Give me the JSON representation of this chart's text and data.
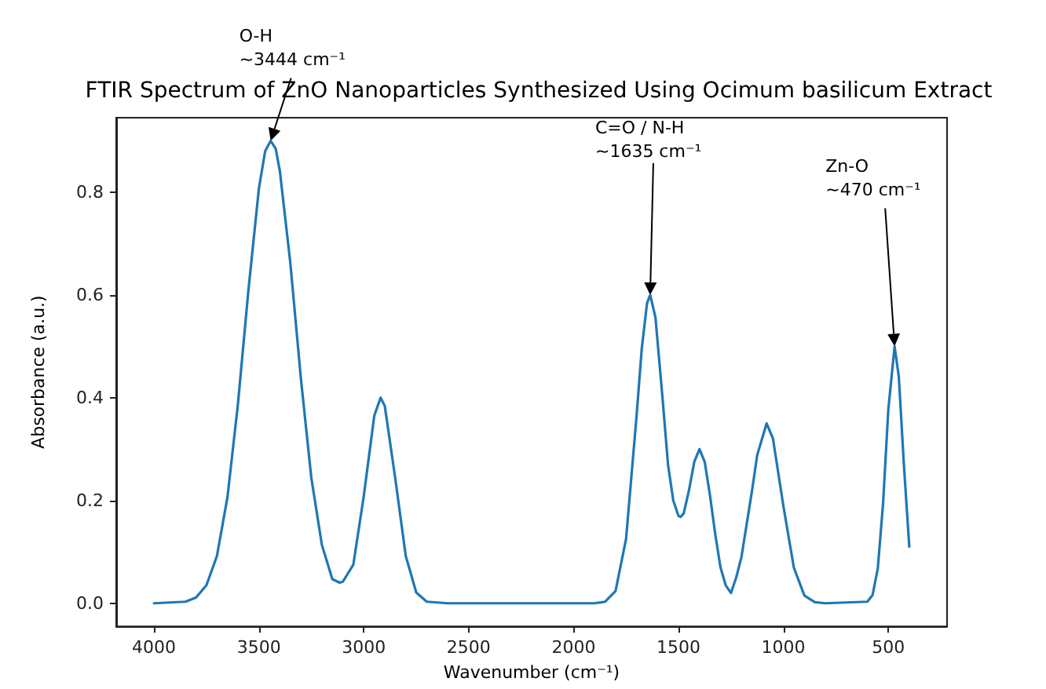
{
  "chart_data": {
    "type": "line",
    "title": "FTIR Spectrum of ZnO Nanoparticles Synthesized Using Ocimum basilicum Extract",
    "xlabel": "Wavenumber (cm⁻¹)",
    "ylabel": "Absorbance (a.u.)",
    "x": [
      4000,
      3850,
      3800,
      3750,
      3700,
      3650,
      3600,
      3550,
      3500,
      3470,
      3444,
      3420,
      3400,
      3350,
      3300,
      3250,
      3200,
      3150,
      3115,
      3100,
      3050,
      3000,
      2950,
      2920,
      2900,
      2850,
      2800,
      2750,
      2700,
      2600,
      2000,
      1900,
      1850,
      1800,
      1750,
      1700,
      1675,
      1650,
      1635,
      1610,
      1575,
      1550,
      1525,
      1500,
      1490,
      1475,
      1450,
      1425,
      1400,
      1375,
      1350,
      1325,
      1300,
      1275,
      1250,
      1225,
      1200,
      1150,
      1125,
      1080,
      1050,
      1000,
      950,
      900,
      850,
      800,
      600,
      575,
      550,
      525,
      500,
      470,
      450,
      425,
      400
    ],
    "series": [
      {
        "color": "#1f77b4",
        "values": [
          0.0,
          0.003,
          0.011,
          0.035,
          0.092,
          0.206,
          0.387,
          0.609,
          0.807,
          0.88,
          0.9,
          0.885,
          0.841,
          0.662,
          0.438,
          0.244,
          0.114,
          0.047,
          0.04,
          0.042,
          0.075,
          0.209,
          0.365,
          0.4,
          0.384,
          0.243,
          0.092,
          0.021,
          0.003,
          0.0,
          0.0,
          0.0,
          0.003,
          0.024,
          0.125,
          0.364,
          0.496,
          0.584,
          0.6,
          0.557,
          0.394,
          0.27,
          0.2,
          0.17,
          0.168,
          0.175,
          0.22,
          0.275,
          0.3,
          0.275,
          0.21,
          0.135,
          0.07,
          0.035,
          0.02,
          0.05,
          0.09,
          0.218,
          0.288,
          0.35,
          0.321,
          0.189,
          0.069,
          0.015,
          0.002,
          0.0,
          0.003,
          0.016,
          0.068,
          0.194,
          0.377,
          0.5,
          0.441,
          0.265,
          0.11
        ]
      }
    ],
    "xlim": [
      4180,
      220
    ],
    "xticks": [
      4000,
      3500,
      3000,
      2500,
      2000,
      1500,
      1000,
      500
    ],
    "ylim": [
      -0.045,
      0.945
    ],
    "yticks": [
      {
        "value": 0,
        "label": "0.0"
      },
      {
        "value": 0.2,
        "label": "0.2"
      },
      {
        "value": 0.4,
        "label": "0.4"
      },
      {
        "value": 0.6,
        "label": "0.6"
      },
      {
        "value": 0.8,
        "label": "0.8"
      }
    ],
    "annotations": [
      {
        "text": "O-H\n~3444 cm⁻¹",
        "x": 3444,
        "y": 0.9
      },
      {
        "text": "C=O / N-H\n~1635 cm⁻¹",
        "x": 1635,
        "y": 0.6
      },
      {
        "text": "Zn-O\n~470 cm⁻¹",
        "x": 470,
        "y": 0.5
      }
    ],
    "grid": false,
    "marker": "none",
    "line_style": "solid"
  }
}
